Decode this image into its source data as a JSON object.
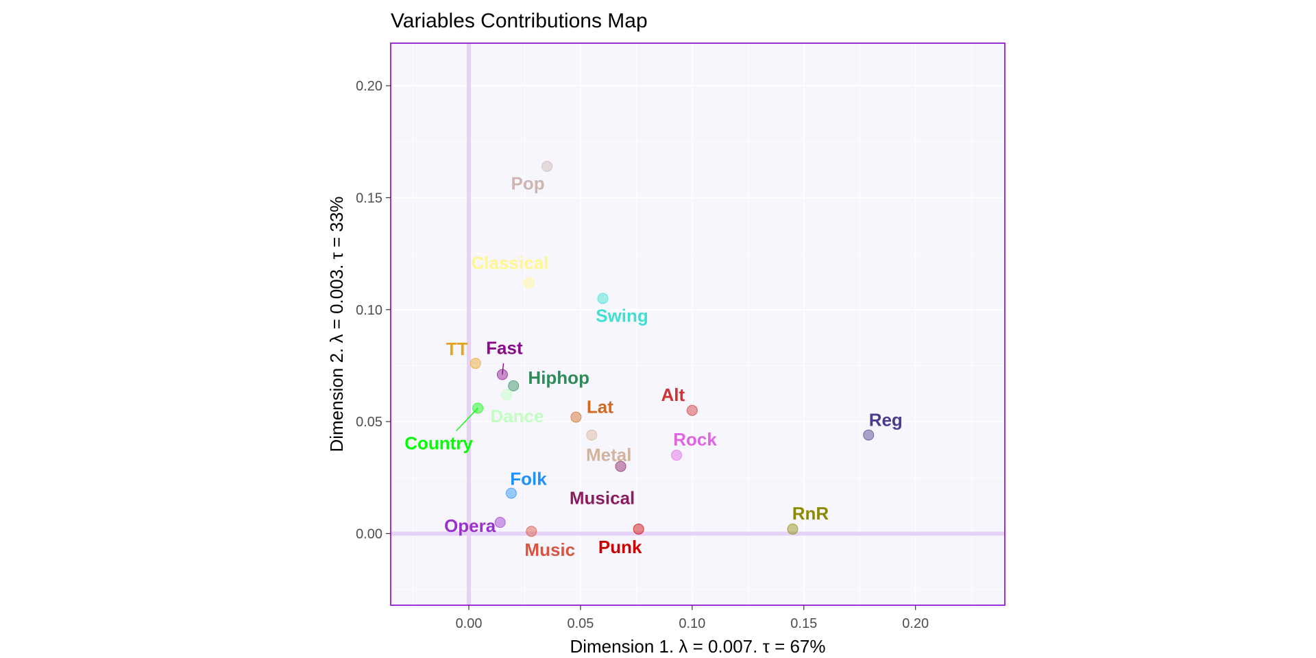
{
  "chart_data": {
    "type": "scatter",
    "title": "Variables Contributions Map",
    "xlabel": "Dimension 1.   λ = 0.007.  τ = 67%",
    "ylabel": "Dimension 2.   λ = 0.003.  τ = 33%",
    "xlim": [
      -0.035,
      0.24
    ],
    "ylim": [
      -0.032,
      0.219
    ],
    "x_ticks": [
      0.0,
      0.05,
      0.1,
      0.15,
      0.2
    ],
    "x_tick_labels": [
      "0.00",
      "0.05",
      "0.10",
      "0.15",
      "0.20"
    ],
    "y_ticks": [
      0.0,
      0.05,
      0.1,
      0.15,
      0.2
    ],
    "y_tick_labels": [
      "0.00",
      "0.05",
      "0.10",
      "0.15",
      "0.20"
    ],
    "grid": true,
    "legend": "none",
    "colors": {
      "panel_background": "#f8f6fd",
      "panel_border": "#9b30d9",
      "origin_lines": "#e6d2f6"
    },
    "points": [
      {
        "name": "Pop",
        "x": 0.035,
        "y": 0.164,
        "color": "#cdb5b1"
      },
      {
        "name": "Classical",
        "x": 0.027,
        "y": 0.112,
        "color": "#fff68f"
      },
      {
        "name": "Swing",
        "x": 0.06,
        "y": 0.105,
        "color": "#40e0d0"
      },
      {
        "name": "TT",
        "x": 0.003,
        "y": 0.076,
        "color": "#e8a31e"
      },
      {
        "name": "Fast",
        "x": 0.015,
        "y": 0.071,
        "color": "#8b0a8b"
      },
      {
        "name": "Hiphop",
        "x": 0.02,
        "y": 0.066,
        "color": "#2e8b57"
      },
      {
        "name": "Dance",
        "x": 0.017,
        "y": 0.062,
        "color": "#c1ffc1"
      },
      {
        "name": "Country",
        "x": 0.004,
        "y": 0.056,
        "color": "#00ff00"
      },
      {
        "name": "Lat",
        "x": 0.048,
        "y": 0.052,
        "color": "#d2691e"
      },
      {
        "name": "Alt",
        "x": 0.1,
        "y": 0.055,
        "color": "#cd3333"
      },
      {
        "name": "Reg",
        "x": 0.179,
        "y": 0.044,
        "color": "#483d8b"
      },
      {
        "name": "Metal",
        "x": 0.055,
        "y": 0.044,
        "color": "#d2b49c"
      },
      {
        "name": "Rock",
        "x": 0.093,
        "y": 0.035,
        "color": "#e066e0"
      },
      {
        "name": "Musical",
        "x": 0.068,
        "y": 0.03,
        "color": "#8b1c62"
      },
      {
        "name": "Folk",
        "x": 0.019,
        "y": 0.018,
        "color": "#1e90ff"
      },
      {
        "name": "Opera",
        "x": 0.014,
        "y": 0.005,
        "color": "#9932cc"
      },
      {
        "name": "Music",
        "x": 0.028,
        "y": 0.001,
        "color": "#d9533f"
      },
      {
        "name": "Punk",
        "x": 0.076,
        "y": 0.002,
        "color": "#cd0000"
      },
      {
        "name": "RnR",
        "x": 0.145,
        "y": 0.002,
        "color": "#8b8b00"
      }
    ]
  }
}
